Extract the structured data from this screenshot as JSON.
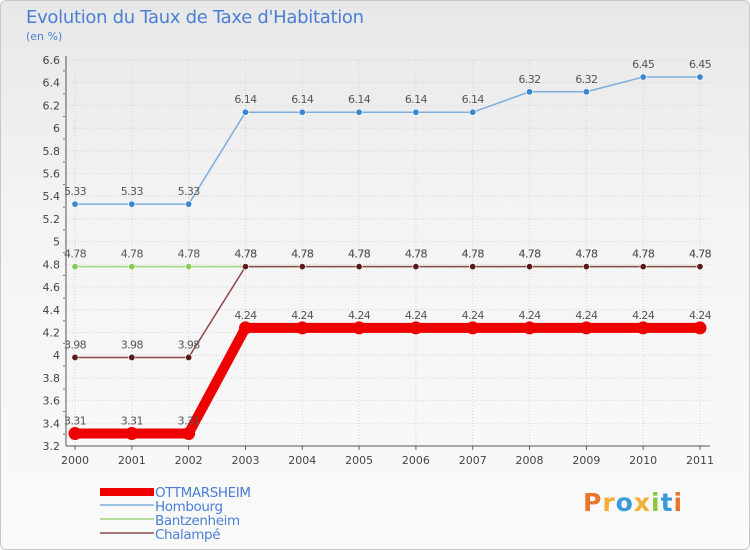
{
  "title": "Evolution du Taux de Taxe d'Habitation",
  "subtitle": "(en %)",
  "logo": {
    "text": "Proxiti",
    "colors": [
      "#e8762d",
      "#f2b135",
      "#3a9ad9",
      "#f2b135",
      "#8cc63f",
      "#3a9ad9",
      "#e8762d"
    ]
  },
  "chart_data": {
    "type": "line",
    "title": "Evolution du Taux de Taxe d'Habitation",
    "ylabel": "(en %)",
    "xlabel": "",
    "categories": [
      "2000",
      "2001",
      "2002",
      "2003",
      "2004",
      "2005",
      "2006",
      "2007",
      "2008",
      "2009",
      "2010",
      "2011"
    ],
    "ylim": [
      3.2,
      6.6
    ],
    "yticks": [
      "3.2",
      "3.4",
      "3.6",
      "3.8",
      "4",
      "4.2",
      "4.4",
      "4.6",
      "4.8",
      "5",
      "5.2",
      "5.4",
      "5.6",
      "5.8",
      "6",
      "6.2",
      "6.4",
      "6.6"
    ],
    "legend_position": "bottom-left",
    "series": [
      {
        "name": "Hombourg",
        "color": "#7aaede",
        "point_color": "#3a86cf",
        "values": [
          5.33,
          5.33,
          5.33,
          6.14,
          6.14,
          6.14,
          6.14,
          6.14,
          6.32,
          6.32,
          6.45,
          6.45
        ],
        "labels": [
          "5.33",
          "5.33",
          "5.33",
          "6.14",
          "6.14",
          "6.14",
          "6.14",
          "6.14",
          "6.32",
          "6.32",
          "6.45",
          "6.45"
        ]
      },
      {
        "name": "Bantzenheim",
        "color": "#9ed77a",
        "point_color": "#86cc52",
        "values": [
          4.78,
          4.78,
          4.78,
          4.78,
          4.78,
          4.78,
          4.78,
          4.78,
          4.78,
          4.78,
          4.78,
          4.78
        ],
        "labels": [
          "4.78",
          "4.78",
          "4.78",
          "4.78",
          "4.78",
          "4.78",
          "4.78",
          "4.78",
          "4.78",
          "4.78",
          "4.78",
          "4.78"
        ]
      },
      {
        "name": "Chalampé",
        "color": "#8b4a4a",
        "point_color": "#5a1a1a",
        "values": [
          3.98,
          3.98,
          3.98,
          4.78,
          4.78,
          4.78,
          4.78,
          4.78,
          4.78,
          4.78,
          4.78,
          4.78
        ],
        "labels": [
          "3.98",
          "3.98",
          "3.98",
          "4.78",
          "4.78",
          "4.78",
          "4.78",
          "4.78",
          "4.78",
          "4.78",
          "4.78",
          "4.78"
        ]
      },
      {
        "name": "OTTMARSHEIM",
        "color": "#ee0000",
        "point_color": "#ee0000",
        "values": [
          3.31,
          3.31,
          3.31,
          4.24,
          4.24,
          4.24,
          4.24,
          4.24,
          4.24,
          4.24,
          4.24,
          4.24
        ],
        "labels": [
          "3.31",
          "3.31",
          "3.31",
          "4.24",
          "4.24",
          "4.24",
          "4.24",
          "4.24",
          "4.24",
          "4.24",
          "4.24",
          "4.24"
        ]
      }
    ],
    "legend": [
      {
        "name": "OTTMARSHEIM",
        "color": "#ee0000"
      },
      {
        "name": "Hombourg",
        "color": "#7aaede"
      },
      {
        "name": "Bantzenheim",
        "color": "#9ed77a"
      },
      {
        "name": "Chalampé",
        "color": "#8b4a4a"
      }
    ]
  }
}
